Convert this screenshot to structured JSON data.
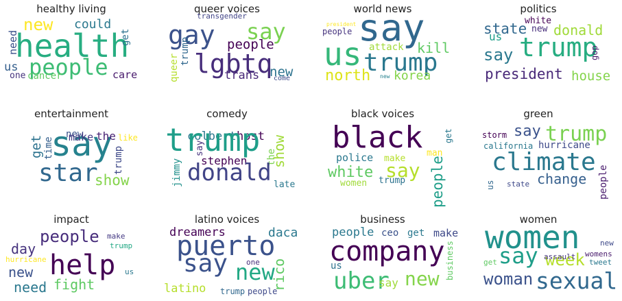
{
  "panels": [
    {
      "title": "healthy living",
      "words": [
        {
          "text": "health",
          "c": "#27ad81"
        },
        {
          "text": "people",
          "c": "#3dbc74"
        },
        {
          "text": "new",
          "c": "#fde725"
        },
        {
          "text": "could",
          "c": "#2a788e"
        },
        {
          "text": "get",
          "c": "#2c728e"
        },
        {
          "text": "need",
          "c": "#3b528b"
        },
        {
          "text": "us",
          "c": "#355f8d"
        },
        {
          "text": "one",
          "c": "#46337e"
        },
        {
          "text": "cancer",
          "c": "#5ec962"
        },
        {
          "text": "care",
          "c": "#481a6c"
        }
      ]
    },
    {
      "title": "queer voices",
      "words": [
        {
          "text": "transgender",
          "c": "#414487"
        },
        {
          "text": "gay",
          "c": "#3b528b"
        },
        {
          "text": "say",
          "c": "#7ad151"
        },
        {
          "text": "people",
          "c": "#440154"
        },
        {
          "text": "lgbtq",
          "c": "#472d7b"
        },
        {
          "text": "trump",
          "c": "#31688e"
        },
        {
          "text": "queer",
          "c": "#b5de2b"
        },
        {
          "text": "new",
          "c": "#2c728e"
        },
        {
          "text": "trans",
          "c": "#482878"
        },
        {
          "text": "come",
          "c": "#3e4989"
        }
      ]
    },
    {
      "title": "world news",
      "words": [
        {
          "text": "president",
          "c": "#fde725"
        },
        {
          "text": "say",
          "c": "#31688e"
        },
        {
          "text": "people",
          "c": "#46337e"
        },
        {
          "text": "us",
          "c": "#35b779"
        },
        {
          "text": "attack",
          "c": "#a0da39"
        },
        {
          "text": "kill",
          "c": "#5ec962"
        },
        {
          "text": "trump",
          "c": "#2a788e"
        },
        {
          "text": "north",
          "c": "#dde318"
        },
        {
          "text": "new",
          "c": "#26828e"
        },
        {
          "text": "korea",
          "c": "#84d44b"
        }
      ]
    },
    {
      "title": "politics",
      "words": [
        {
          "text": "white",
          "c": "#440154"
        },
        {
          "text": "state",
          "c": "#31688e"
        },
        {
          "text": "new",
          "c": "#472d7b"
        },
        {
          "text": "donald",
          "c": "#a0da39"
        },
        {
          "text": "us",
          "c": "#1f9e89"
        },
        {
          "text": "trump",
          "c": "#27ad81"
        },
        {
          "text": "say",
          "c": "#2a788e"
        },
        {
          "text": "gop",
          "c": "#481a6c"
        },
        {
          "text": "president",
          "c": "#482878"
        },
        {
          "text": "house",
          "c": "#84d44b"
        }
      ]
    },
    {
      "title": "entertainment",
      "words": [
        {
          "text": "new",
          "c": "#3b528b"
        },
        {
          "text": "say",
          "c": "#26828e"
        },
        {
          "text": "make",
          "c": "#443983"
        },
        {
          "text": "the",
          "c": "#482173"
        },
        {
          "text": "like",
          "c": "#fde725"
        },
        {
          "text": "get",
          "c": "#2c728e"
        },
        {
          "text": "time",
          "c": "#355f8d"
        },
        {
          "text": "star",
          "c": "#31688e"
        },
        {
          "text": "trump",
          "c": "#3e4989"
        },
        {
          "text": "show",
          "c": "#84d44b"
        }
      ]
    },
    {
      "title": "comedy",
      "words": [
        {
          "text": "colbert",
          "c": "#2a788e"
        },
        {
          "text": "host",
          "c": "#440154"
        },
        {
          "text": "trump",
          "c": "#1f9e89"
        },
        {
          "text": "show",
          "c": "#a0da39"
        },
        {
          "text": "say",
          "c": "#46337e"
        },
        {
          "text": "the",
          "c": "#7ad151"
        },
        {
          "text": "stephen",
          "c": "#440154"
        },
        {
          "text": "jimmy",
          "c": "#21918c"
        },
        {
          "text": "donald",
          "c": "#414487"
        },
        {
          "text": "late",
          "c": "#2a788e"
        }
      ]
    },
    {
      "title": "black voices",
      "words": [
        {
          "text": "black",
          "c": "#440154"
        },
        {
          "text": "get",
          "c": "#2a788e"
        },
        {
          "text": "man",
          "c": "#fde725"
        },
        {
          "text": "police",
          "c": "#2a788e"
        },
        {
          "text": "make",
          "c": "#b5de2b"
        },
        {
          "text": "people",
          "c": "#1f9e89"
        },
        {
          "text": "say",
          "c": "#b5de2b"
        },
        {
          "text": "white",
          "c": "#5ec962"
        },
        {
          "text": "women",
          "c": "#a0da39"
        },
        {
          "text": "trump",
          "c": "#2c728e"
        }
      ]
    },
    {
      "title": "green",
      "words": [
        {
          "text": "storm",
          "c": "#440154"
        },
        {
          "text": "say",
          "c": "#3b528b"
        },
        {
          "text": "trump",
          "c": "#7ad151"
        },
        {
          "text": "california",
          "c": "#2a788e"
        },
        {
          "text": "hurricane",
          "c": "#3e4989"
        },
        {
          "text": "climate",
          "c": "#2a788e"
        },
        {
          "text": "people",
          "c": "#481a6c"
        },
        {
          "text": "us",
          "c": "#31688e"
        },
        {
          "text": "state",
          "c": "#3e4989"
        },
        {
          "text": "change",
          "c": "#355f8d"
        }
      ]
    },
    {
      "title": "impact",
      "words": [
        {
          "text": "people",
          "c": "#472d7b"
        },
        {
          "text": "make",
          "c": "#443983"
        },
        {
          "text": "day",
          "c": "#46337e"
        },
        {
          "text": "trump",
          "c": "#22a884"
        },
        {
          "text": "hurricane",
          "c": "#fde725"
        },
        {
          "text": "help",
          "c": "#440154"
        },
        {
          "text": "new",
          "c": "#3b528b"
        },
        {
          "text": "us",
          "c": "#2a788e"
        },
        {
          "text": "need",
          "c": "#2a788e"
        },
        {
          "text": "fight",
          "c": "#5ec962"
        }
      ]
    },
    {
      "title": "latino voices",
      "words": [
        {
          "text": "dreamers",
          "c": "#440154"
        },
        {
          "text": "daca",
          "c": "#2a788e"
        },
        {
          "text": "puerto",
          "c": "#3b528b"
        },
        {
          "text": "say",
          "c": "#3b528b"
        },
        {
          "text": "one",
          "c": "#472d7b"
        },
        {
          "text": "new",
          "c": "#22a884"
        },
        {
          "text": "rico",
          "c": "#5ec962"
        },
        {
          "text": "latino",
          "c": "#b5de2b"
        },
        {
          "text": "trump",
          "c": "#31688e"
        },
        {
          "text": "people",
          "c": "#3e4989"
        }
      ]
    },
    {
      "title": "business",
      "words": [
        {
          "text": "people",
          "c": "#2a788e"
        },
        {
          "text": "ceo",
          "c": "#3b528b"
        },
        {
          "text": "get",
          "c": "#2a788e"
        },
        {
          "text": "make",
          "c": "#3e4989"
        },
        {
          "text": "company",
          "c": "#440154"
        },
        {
          "text": "business",
          "c": "#5ec962"
        },
        {
          "text": "us",
          "c": "#2c728e"
        },
        {
          "text": "uber",
          "c": "#3dbc74"
        },
        {
          "text": "say",
          "c": "#a0da39"
        },
        {
          "text": "new",
          "c": "#84d44b"
        }
      ]
    },
    {
      "title": "women",
      "words": [
        {
          "text": "women",
          "c": "#21918c"
        },
        {
          "text": "new",
          "c": "#3e4989"
        },
        {
          "text": "say",
          "c": "#1f9e89"
        },
        {
          "text": "week",
          "c": "#b5de2b"
        },
        {
          "text": "assault",
          "c": "#46337e"
        },
        {
          "text": "womens",
          "c": "#481a6c"
        },
        {
          "text": "get",
          "c": "#5ec962"
        },
        {
          "text": "tweet",
          "c": "#2a788e"
        },
        {
          "text": "woman",
          "c": "#3b528b"
        },
        {
          "text": "sexual",
          "c": "#31688e"
        }
      ]
    }
  ]
}
